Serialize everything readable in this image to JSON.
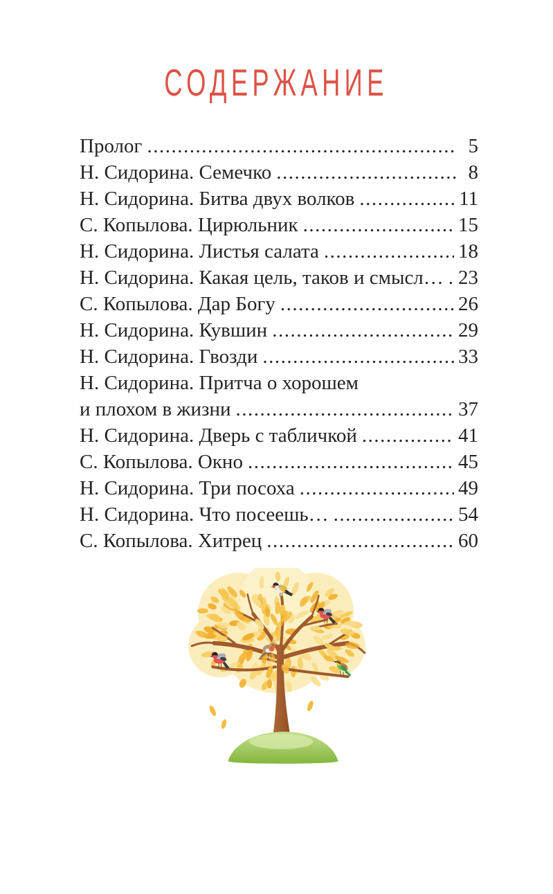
{
  "page": {
    "title": "СОДЕРЖАНИЕ",
    "title_color": "#DC5348",
    "text_color": "#242424",
    "background_color": "#ffffff"
  },
  "toc": {
    "rows": [
      {
        "text": "Пролог",
        "page": "5"
      },
      {
        "text": "Н. Сидорина. Семечко",
        "page": "8"
      },
      {
        "text": "Н. Сидорина. Битва двух волков",
        "page": "11"
      },
      {
        "text": "С. Копылова. Цирюльник",
        "page": "15"
      },
      {
        "text": "Н. Сидорина. Листья салата",
        "page": "18"
      },
      {
        "text": "Н. Сидорина. Какая цель, таков и смысл…",
        "page": "23"
      },
      {
        "text": "С. Копылова. Дар Богу",
        "page": "26"
      },
      {
        "text": "Н. Сидорина. Кувшин",
        "page": "29"
      },
      {
        "text": "Н. Сидорина. Гвозди",
        "page": "33"
      },
      {
        "text": "Н. Сидорина. Притча о хорошем",
        "page": ""
      },
      {
        "text": "и плохом в жизни",
        "page": "37"
      },
      {
        "text": "Н. Сидорина. Дверь с табличкой",
        "page": "41"
      },
      {
        "text": "С. Копылова. Окно",
        "page": "45"
      },
      {
        "text": "Н. Сидорина. Три посоха",
        "page": "49"
      },
      {
        "text": "Н. Сидорина. Что посеешь…",
        "page": "54"
      },
      {
        "text": "С. Копылова. Хитрец",
        "page": "60"
      }
    ]
  },
  "illustration": {
    "name": "autumn-tree-with-birds",
    "birds": [
      "goldfinch",
      "bullfinch",
      "robin",
      "bullfinch",
      "bee-eater"
    ],
    "colors": {
      "foliage_light": "#FBE9A8",
      "foliage_leaf": "#F3BC3F",
      "trunk": "#A05A2E",
      "grass": "#93C050",
      "bullfinch_red": "#E25253",
      "robin_orange": "#E06B33"
    }
  }
}
